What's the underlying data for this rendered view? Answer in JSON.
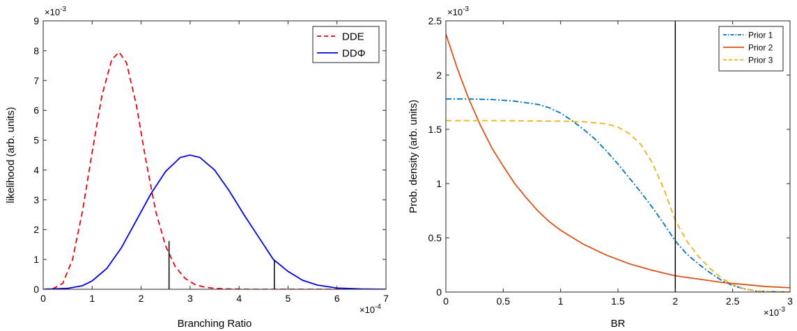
{
  "chart_data": [
    {
      "type": "line",
      "xlabel": "Branching Ratio",
      "ylabel": "likelihood (arb. units)",
      "x_exponent": "×10",
      "x_exponent_power": "-4",
      "y_exponent": "×10",
      "y_exponent_power": "-3",
      "xlim": [
        0,
        7
      ],
      "ylim": [
        0,
        9
      ],
      "xticks": [
        0,
        1,
        2,
        3,
        4,
        5,
        6,
        7
      ],
      "xtick_labels": [
        "0",
        "1",
        "2",
        "3",
        "4",
        "5",
        "6",
        "7"
      ],
      "yticks": [
        0,
        1,
        2,
        3,
        4,
        5,
        6,
        7,
        8,
        9
      ],
      "ytick_labels": [
        "0",
        "1",
        "2",
        "3",
        "4",
        "5",
        "6",
        "7",
        "8",
        "9"
      ],
      "legend_position": "top-right",
      "series": [
        {
          "name": "DDE",
          "color": "#e8000b",
          "style": "dashed",
          "x": [
            0,
            0.2,
            0.4,
            0.6,
            0.8,
            1.0,
            1.2,
            1.4,
            1.55,
            1.7,
            1.9,
            2.1,
            2.3,
            2.5,
            2.7,
            2.9,
            3.1,
            3.3,
            3.5,
            3.8,
            4.2,
            4.6,
            5.0,
            6.0,
            7.0
          ],
          "y": [
            0,
            0.02,
            0.2,
            1.0,
            2.6,
            4.6,
            6.5,
            7.7,
            7.95,
            7.6,
            6.2,
            4.3,
            2.6,
            1.45,
            0.75,
            0.36,
            0.16,
            0.07,
            0.03,
            0.01,
            0,
            0,
            0,
            0,
            0
          ]
        },
        {
          "name": "DDΦ",
          "color": "#0000e0",
          "style": "solid",
          "x": [
            0,
            0.5,
            0.8,
            1.0,
            1.3,
            1.6,
            1.9,
            2.2,
            2.5,
            2.8,
            3.0,
            3.2,
            3.5,
            3.8,
            4.1,
            4.4,
            4.7,
            5.0,
            5.3,
            5.6,
            6.0,
            6.5,
            7.0
          ],
          "y": [
            0,
            0.03,
            0.12,
            0.28,
            0.7,
            1.4,
            2.3,
            3.2,
            3.95,
            4.42,
            4.5,
            4.42,
            4.0,
            3.3,
            2.5,
            1.75,
            1.0,
            0.6,
            0.3,
            0.14,
            0.04,
            0.01,
            0
          ]
        }
      ],
      "vertical_markers": [
        {
          "x": 2.57,
          "y_top": 1.62
        },
        {
          "x": 4.72,
          "y_top": 0.98
        }
      ]
    },
    {
      "type": "line",
      "xlabel": "BR",
      "ylabel": "Prob. density (arb. units)",
      "x_exponent": "×10",
      "x_exponent_power": "-3",
      "y_exponent": "×10",
      "y_exponent_power": "-3",
      "xlim": [
        0,
        3
      ],
      "ylim": [
        0,
        2.5
      ],
      "xticks": [
        0,
        0.5,
        1,
        1.5,
        2,
        2.5,
        3
      ],
      "xtick_labels": [
        "0",
        "0.5",
        "1",
        "1.5",
        "2",
        "2.5",
        "3"
      ],
      "yticks": [
        0,
        0.5,
        1,
        1.5,
        2,
        2.5
      ],
      "ytick_labels": [
        "0",
        "0.5",
        "1",
        "1.5",
        "2",
        "2.5"
      ],
      "legend_position": "top-right",
      "series": [
        {
          "name": "Prior 1",
          "color": "#0072bd",
          "style": "dashdot",
          "x": [
            0,
            0.2,
            0.4,
            0.6,
            0.8,
            0.9,
            1.0,
            1.1,
            1.2,
            1.3,
            1.4,
            1.5,
            1.6,
            1.7,
            1.8,
            1.9,
            2.0,
            2.1,
            2.2,
            2.3,
            2.4,
            2.5,
            2.6,
            2.7,
            2.8,
            2.9,
            3.0
          ],
          "y": [
            1.78,
            1.78,
            1.775,
            1.76,
            1.73,
            1.7,
            1.65,
            1.58,
            1.5,
            1.41,
            1.3,
            1.18,
            1.05,
            0.92,
            0.78,
            0.63,
            0.47,
            0.35,
            0.26,
            0.18,
            0.11,
            0.06,
            0.03,
            0.01,
            0.005,
            0.002,
            0
          ]
        },
        {
          "name": "Prior 2",
          "color": "#d95319",
          "style": "solid",
          "x": [
            0,
            0.1,
            0.2,
            0.3,
            0.4,
            0.5,
            0.6,
            0.7,
            0.8,
            0.9,
            1.0,
            1.2,
            1.4,
            1.6,
            1.8,
            2.0,
            2.2,
            2.4,
            2.6,
            2.8,
            3.0
          ],
          "y": [
            2.38,
            2.06,
            1.78,
            1.54,
            1.33,
            1.16,
            1.0,
            0.87,
            0.75,
            0.65,
            0.57,
            0.44,
            0.34,
            0.26,
            0.2,
            0.15,
            0.12,
            0.09,
            0.07,
            0.05,
            0.04
          ]
        },
        {
          "name": "Prior 3",
          "color": "#edb120",
          "style": "dashed",
          "x": [
            0,
            0.5,
            1.0,
            1.2,
            1.4,
            1.5,
            1.6,
            1.7,
            1.8,
            1.9,
            2.0,
            2.1,
            2.2,
            2.3,
            2.4,
            2.5,
            2.6,
            2.7,
            2.8,
            3.0
          ],
          "y": [
            1.58,
            1.58,
            1.575,
            1.57,
            1.55,
            1.52,
            1.46,
            1.36,
            1.19,
            0.95,
            0.66,
            0.47,
            0.33,
            0.22,
            0.13,
            0.07,
            0.03,
            0.01,
            0.005,
            0
          ]
        }
      ],
      "vertical_markers": [
        {
          "x": 2.0,
          "y_top": 2.5
        }
      ]
    }
  ]
}
